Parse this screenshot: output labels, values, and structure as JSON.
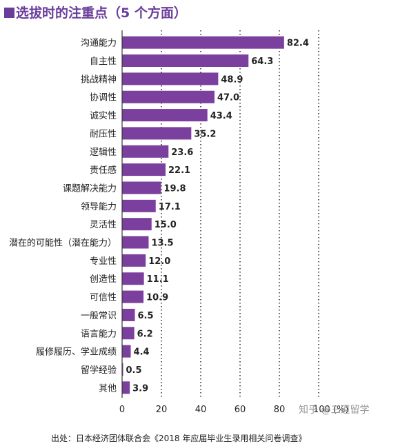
{
  "title": "■选拔时的注重点（5 个方面）",
  "title_text": "选拔时的注重点（5 个方面）",
  "source": "出处：日本经济团体联合会《2018 年应届毕业生录用相关问卷调查》",
  "watermark": "知乎 @三道留学",
  "colors": {
    "bar": "#7b3f9d",
    "accent": "#6a3d9a",
    "grid": "#333333"
  },
  "chart_data": {
    "type": "bar",
    "orientation": "horizontal",
    "categories": [
      "沟通能力",
      "自主性",
      "挑战精神",
      "协调性",
      "诚实性",
      "耐压性",
      "逻辑性",
      "责任感",
      "课题解决能力",
      "领导能力",
      "灵活性",
      "潜在的可能性（潜在能力）",
      "专业性",
      "创造性",
      "可信性",
      "一般常识",
      "语言能力",
      "履修履历、学业成绩",
      "留学经验",
      "其他"
    ],
    "values": [
      82.4,
      64.3,
      48.9,
      47.0,
      43.4,
      35.2,
      23.6,
      22.1,
      19.8,
      17.1,
      15.0,
      13.5,
      12.0,
      11.1,
      10.9,
      6.5,
      6.2,
      4.4,
      0.5,
      3.9
    ],
    "value_labels": [
      "82.4",
      "64.3",
      "48.9",
      "47.0",
      "43.4",
      "35.2",
      "23.6",
      "22.1",
      "19.8",
      "17.1",
      "15.0",
      "13.5",
      "12.0",
      "11.1",
      "10.9",
      "6.5",
      "6.2",
      "4.4",
      "0.5",
      "3.9"
    ],
    "x_ticks": [
      "0",
      "20",
      "40",
      "60",
      "80",
      "100 (%)"
    ],
    "x_tick_values": [
      0,
      20,
      40,
      60,
      80,
      100
    ],
    "xlim": [
      0,
      100
    ],
    "xlabel": "",
    "ylabel": "",
    "grid": "vertical-dotted"
  }
}
